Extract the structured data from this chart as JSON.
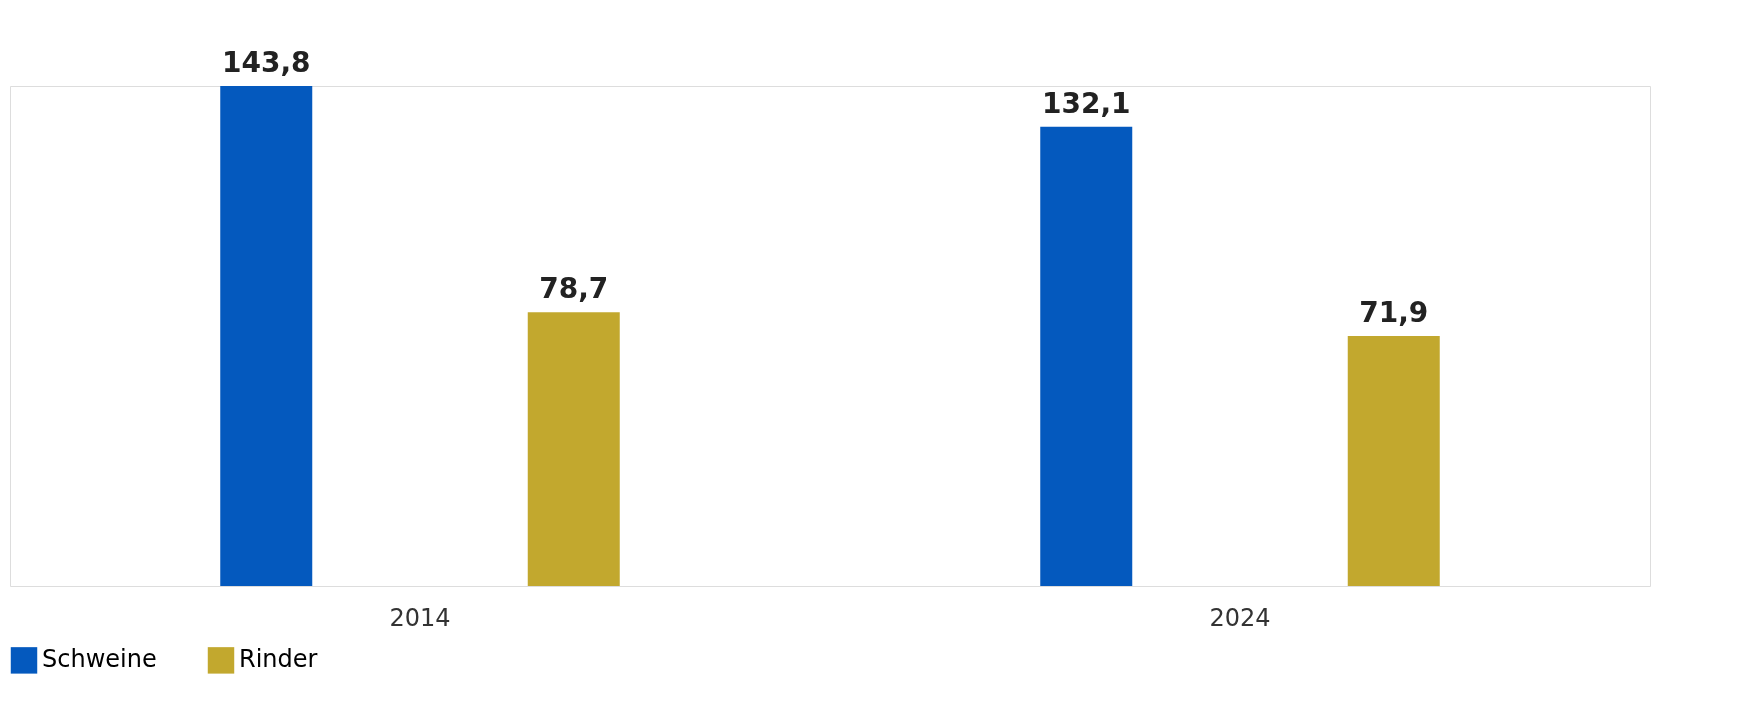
{
  "chart_data": {
    "type": "bar",
    "categories": [
      "2014",
      "2024"
    ],
    "series": [
      {
        "name": "Schweine",
        "color": "#0459be",
        "values": [
          143.8,
          132.1
        ],
        "value_labels": [
          "143,8",
          "132,1"
        ]
      },
      {
        "name": "Rinder",
        "color": "#c2a82e",
        "values": [
          78.7,
          71.9
        ],
        "value_labels": [
          "78,7",
          "71,9"
        ]
      }
    ],
    "legend": "bottom left",
    "grid": false
  }
}
